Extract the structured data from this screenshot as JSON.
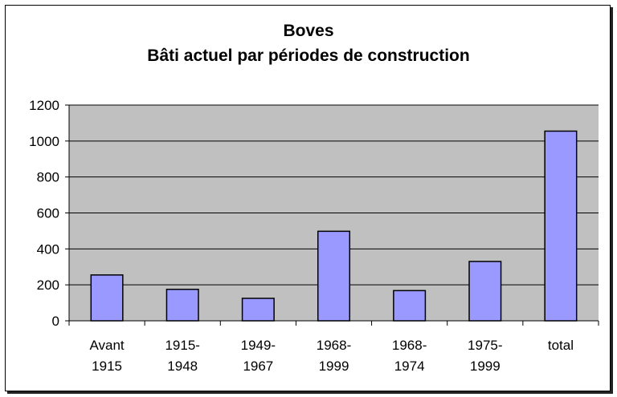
{
  "chart_data": {
    "type": "bar",
    "title": "Boves",
    "subtitle": "Bâti actuel par périodes de construction",
    "categories": [
      [
        "Avant",
        "1915"
      ],
      [
        "1915-",
        "1948"
      ],
      [
        "1949-",
        "1967"
      ],
      [
        "1968-",
        "1999"
      ],
      [
        "1968-",
        "1974"
      ],
      [
        "1975-",
        "1999"
      ],
      [
        "total"
      ]
    ],
    "values": [
      255,
      175,
      125,
      498,
      168,
      330,
      1055
    ],
    "ylim": [
      0,
      1200
    ],
    "yticks": [
      0,
      200,
      400,
      600,
      800,
      1000,
      1200
    ],
    "grid": true,
    "legend": "none",
    "colors": {
      "bar_fill": "#9999ff",
      "bar_stroke": "#000000",
      "plot_bg": "#c0c0c0",
      "gridline": "#000000"
    }
  }
}
